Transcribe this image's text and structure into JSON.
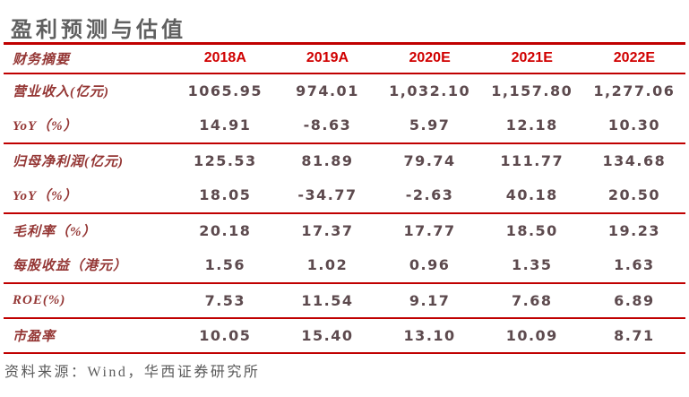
{
  "title": "盈利预测与估值",
  "colors": {
    "rule_red": "#c00000",
    "year_header_red": "#d00000",
    "row_label_maroon": "#943634",
    "value_plum": "#5d4a4e",
    "title_gray": "#606060",
    "source_gray": "#5a5a5a"
  },
  "table": {
    "header": [
      "财务摘要",
      "2018A",
      "2019A",
      "2020E",
      "2021E",
      "2022E"
    ],
    "rows": [
      {
        "label": "营业收入(亿元)",
        "values": [
          "1065.95",
          "974.01",
          "1,032.10",
          "1,157.80",
          "1,277.06"
        ],
        "group_end": false
      },
      {
        "label": "YoY（%）",
        "values": [
          "14.91",
          "-8.63",
          "5.97",
          "12.18",
          "10.30"
        ],
        "group_end": true
      },
      {
        "label": "归母净利润(亿元)",
        "values": [
          "125.53",
          "81.89",
          "79.74",
          "111.77",
          "134.68"
        ],
        "group_end": false
      },
      {
        "label": "YoY（%）",
        "values": [
          "18.05",
          "-34.77",
          "-2.63",
          "40.18",
          "20.50"
        ],
        "group_end": true
      },
      {
        "label": "毛利率（%）",
        "values": [
          "20.18",
          "17.37",
          "17.77",
          "18.50",
          "19.23"
        ],
        "group_end": false
      },
      {
        "label": "每股收益（港元）",
        "values": [
          "1.56",
          "1.02",
          "0.96",
          "1.35",
          "1.63"
        ],
        "group_end": true
      },
      {
        "label": "ROE(%)",
        "values": [
          "7.53",
          "11.54",
          "9.17",
          "7.68",
          "6.89"
        ],
        "group_end": true
      },
      {
        "label": "市盈率",
        "values": [
          "10.05",
          "15.40",
          "13.10",
          "10.09",
          "8.71"
        ],
        "group_end": true
      }
    ]
  },
  "footer": {
    "source": "资料来源：Wind，华西证券研究所"
  }
}
